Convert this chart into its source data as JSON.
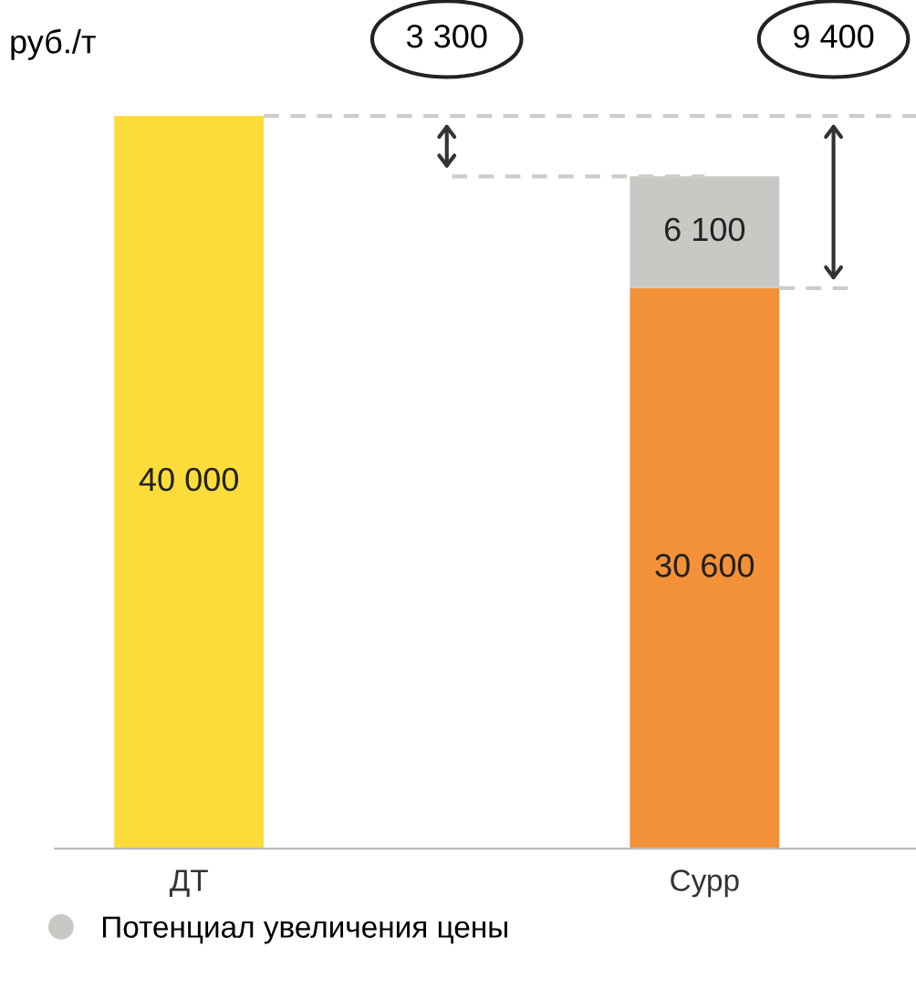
{
  "chart_data": {
    "type": "bar",
    "stacked": true,
    "ylabel": "руб./т",
    "categories": [
      "ДТ",
      "Сурр"
    ],
    "series": [
      {
        "colors": [
          "#fcdc3a",
          "#f39139"
        ],
        "values": [
          40000,
          30600
        ],
        "value_labels": [
          "40 000",
          "30 600"
        ]
      },
      {
        "name": "Потенциал увеличения цены",
        "color": "#c8c9c4",
        "values": [
          null,
          6100
        ],
        "value_labels": [
          null,
          "6 100"
        ]
      }
    ],
    "annotations": [
      "3 300",
      "9 400"
    ],
    "legend": "bottom",
    "grid": false
  }
}
